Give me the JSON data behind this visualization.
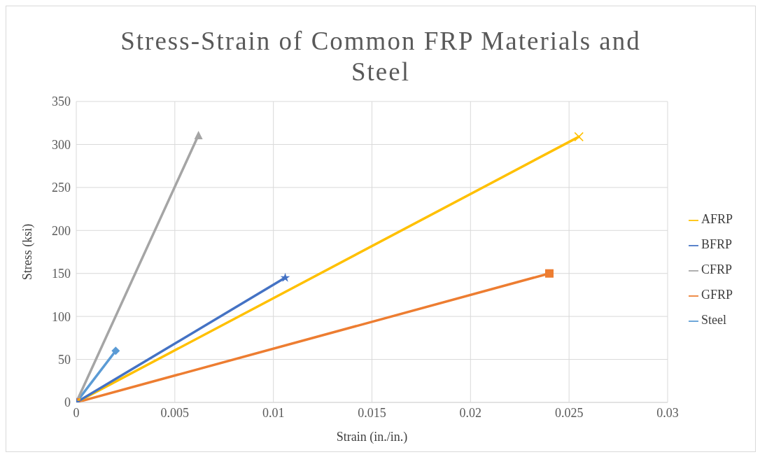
{
  "chart_data": {
    "type": "line",
    "title": "Stress-Strain of Common FRP Materials and Steel",
    "xlabel": "Strain (in./in.)",
    "ylabel": "Stress (ksi)",
    "xlim": [
      0,
      0.03
    ],
    "xticks": [
      0,
      0.005,
      0.01,
      0.015,
      0.02,
      0.025,
      0.03
    ],
    "ylim": [
      0,
      350
    ],
    "yticks": [
      0,
      50,
      100,
      150,
      200,
      250,
      300,
      350
    ],
    "grid": true,
    "legend": "right",
    "series": [
      {
        "name": "Steel",
        "color": "#5b9bd5",
        "marker": "diamond",
        "x": [
          0,
          0.002
        ],
        "values": [
          0,
          60
        ]
      },
      {
        "name": "GFRP",
        "color": "#ed7d31",
        "marker": "square",
        "x": [
          0,
          0.024
        ],
        "values": [
          0,
          150
        ]
      },
      {
        "name": "CFRP",
        "color": "#a5a5a5",
        "marker": "triangle",
        "x": [
          0,
          0.0062
        ],
        "values": [
          0,
          311
        ]
      },
      {
        "name": "AFRP",
        "color": "#ffc000",
        "marker": "cross",
        "x": [
          0,
          0.0255
        ],
        "values": [
          0,
          309
        ]
      },
      {
        "name": "BFRP",
        "color": "#4472c4",
        "marker": "star",
        "x": [
          0,
          0.0106
        ],
        "values": [
          0,
          145
        ]
      }
    ]
  }
}
